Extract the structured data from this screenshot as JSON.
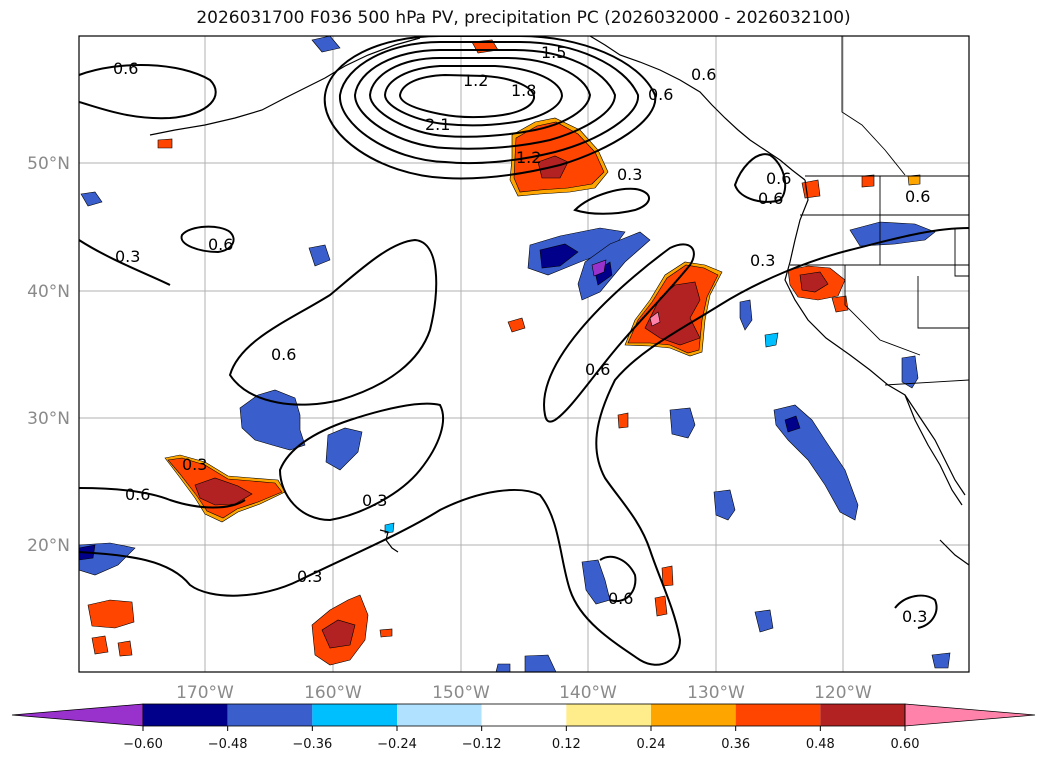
{
  "title": "2026031700 F036 500 hPa PV, precipitation PC (2026032000 - 2026032100)",
  "map": {
    "lon_labels": [
      "170°W",
      "160°W",
      "150°W",
      "140°W",
      "130°W",
      "120°W"
    ],
    "lat_labels": [
      "50°N",
      "40°N",
      "30°N",
      "20°N"
    ],
    "contour_labels": [
      "0.6",
      "1.2",
      "1.5",
      "1.8",
      "2.1",
      "1.2",
      "0.3",
      "0.6",
      "0.3",
      "0.6",
      "0.6",
      "0.6",
      "0.3",
      "0.6",
      "0.3",
      "0.6",
      "0.3",
      "0.3",
      "0.6",
      "0.3",
      "0.6",
      "0.6",
      "0.6"
    ]
  },
  "colorbar": {
    "ticks": [
      "−0.60",
      "−0.48",
      "−0.36",
      "−0.24",
      "−0.12",
      "0.12",
      "0.24",
      "0.36",
      "0.48",
      "0.60"
    ],
    "colors": [
      "#9932cc",
      "#00008b",
      "#3a5fcd",
      "#00bfff",
      "#b0e2ff",
      "#ffffff",
      "#ffec8b",
      "#ffa500",
      "#ff4500",
      "#b22222",
      "#ff82ab"
    ]
  }
}
